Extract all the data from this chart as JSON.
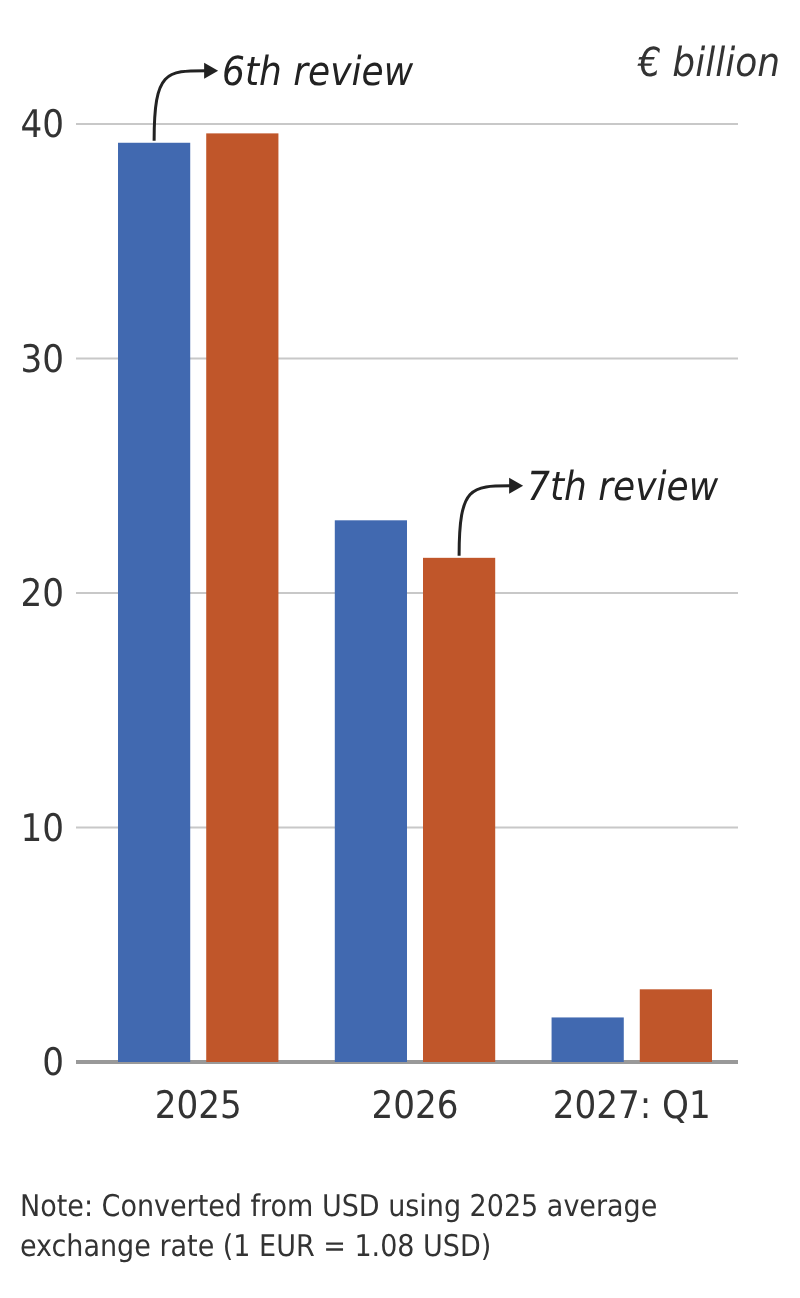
{
  "chart_data": {
    "type": "bar",
    "ylabel": "€ billion",
    "categories": [
      "2025",
      "2026",
      "2027: Q1"
    ],
    "series": [
      {
        "color": "#4169b0",
        "values": [
          39.2,
          23.1,
          1.9
        ]
      },
      {
        "color": "#c0562a",
        "values": [
          39.6,
          21.5,
          3.1
        ]
      }
    ],
    "ylim": [
      0,
      40
    ],
    "yticks": [
      0,
      10,
      20,
      30,
      40
    ],
    "grid": "y",
    "annotations": [
      "6th review",
      "7th review",
      "Note: Converted from USD using 2025 average exchange rate (1 EUR = 1.08 USD)"
    ]
  }
}
